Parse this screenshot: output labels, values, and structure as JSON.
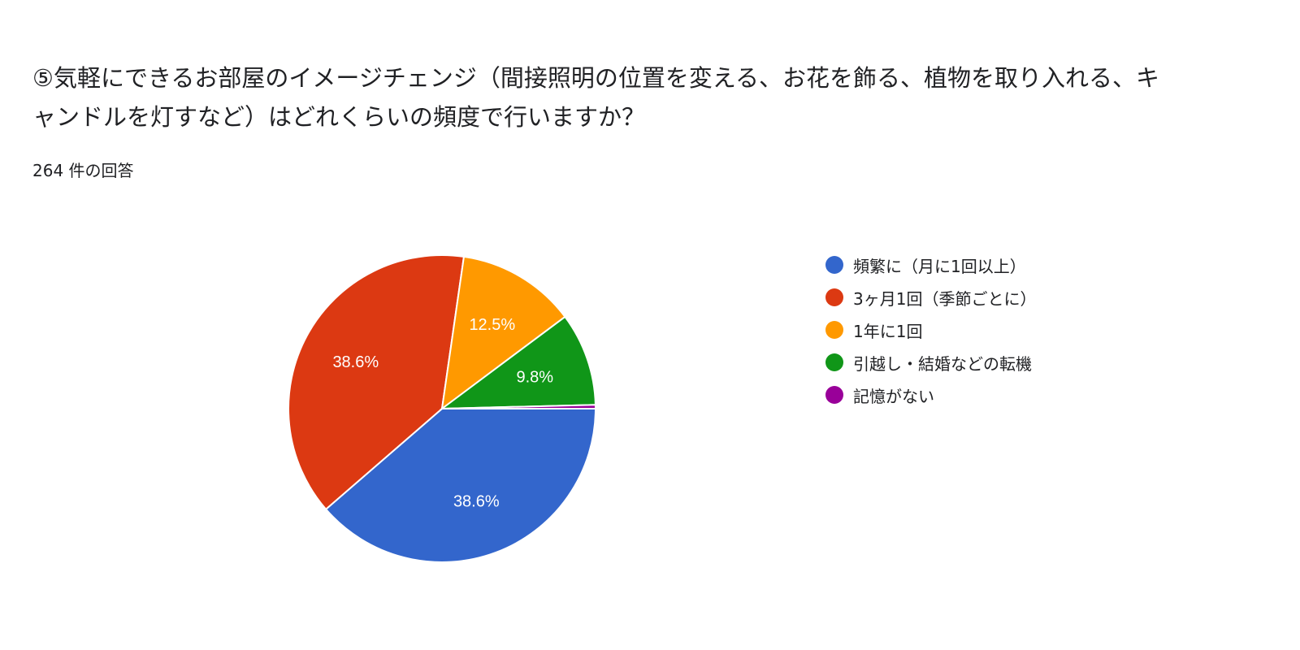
{
  "question": {
    "title": "⑤気軽にできるお部屋のイメージチェンジ（間接照明の位置を変える、お花を飾る、植物を取り入れる、キャンドルを灯すなど）はどれくらいの頻度で行いますか？",
    "response_count": "264 件の回答"
  },
  "chart_data": {
    "type": "pie",
    "categories": [
      "頻繁に（月に1回以上）",
      "3ヶ月1回（季節ごとに）",
      "1年に1回",
      "引越し・結婚などの転機",
      "記憶がない"
    ],
    "values": [
      38.6,
      38.6,
      12.5,
      9.8,
      0.4
    ],
    "labels": [
      "38.6%",
      "38.6%",
      "12.5%",
      "9.8%",
      ""
    ],
    "colors": [
      "#3366cc",
      "#dc3912",
      "#ff9900",
      "#109618",
      "#990099"
    ],
    "legend_position": "right"
  }
}
